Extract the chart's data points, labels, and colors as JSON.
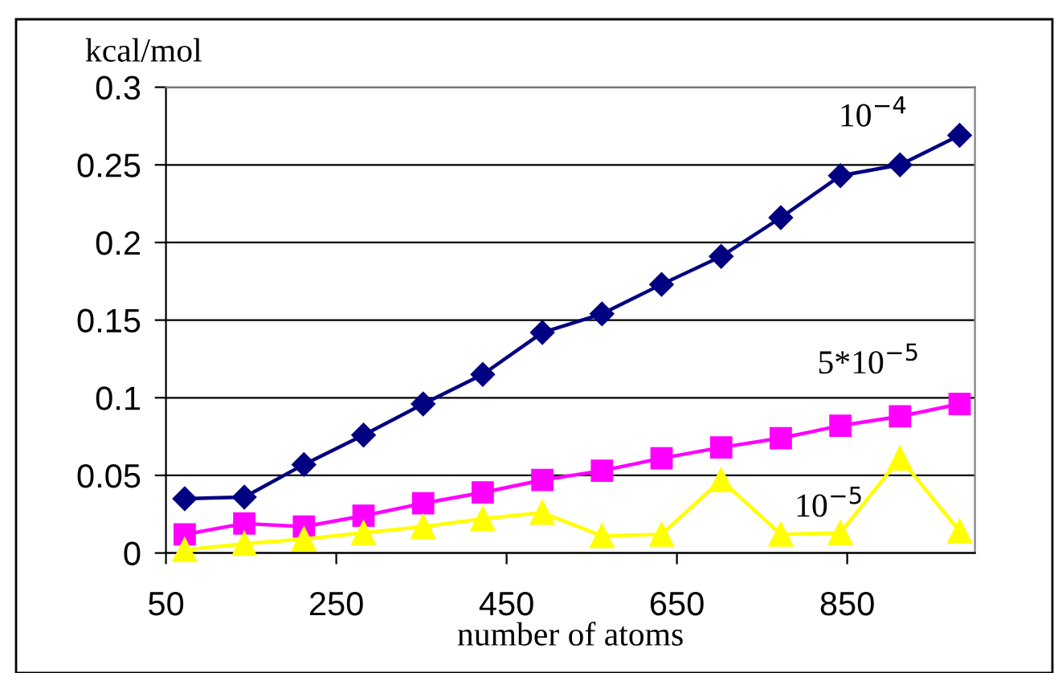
{
  "chart_data": {
    "type": "line",
    "xlabel": "number of atoms",
    "ylabel": "kcal/mol",
    "x": [
      72,
      142,
      212,
      282,
      352,
      422,
      492,
      562,
      632,
      702,
      772,
      842,
      912,
      982
    ],
    "series": [
      {
        "name": "10$^{−4}$",
        "color": "#000080",
        "marker": "diamond",
        "values": [
          0.035,
          0.036,
          0.057,
          0.076,
          0.096,
          0.115,
          0.142,
          0.154,
          0.173,
          0.191,
          0.216,
          0.243,
          0.25,
          0.269
        ]
      },
      {
        "name": "5*10$^{−5}$",
        "color": "#ff00ff",
        "marker": "square",
        "values": [
          0.012,
          0.019,
          0.017,
          0.024,
          0.032,
          0.039,
          0.047,
          0.053,
          0.061,
          0.068,
          0.074,
          0.082,
          0.088,
          0.096
        ]
      },
      {
        "name": "10$^{−5}$",
        "color": "#ffff00",
        "marker": "triangle",
        "values": [
          0.002,
          0.006,
          0.009,
          0.013,
          0.017,
          0.022,
          0.026,
          0.011,
          0.012,
          0.047,
          0.012,
          0.013,
          0.061,
          0.014
        ]
      }
    ],
    "xlim": [
      50,
      1000
    ],
    "xticks": [
      50,
      250,
      450,
      650,
      850
    ],
    "ylim": [
      0,
      0.3
    ],
    "yticks": [
      0,
      0.05,
      0.1,
      0.15,
      0.2,
      0.25,
      0.3
    ],
    "grid": "y",
    "line_style": "solid"
  }
}
